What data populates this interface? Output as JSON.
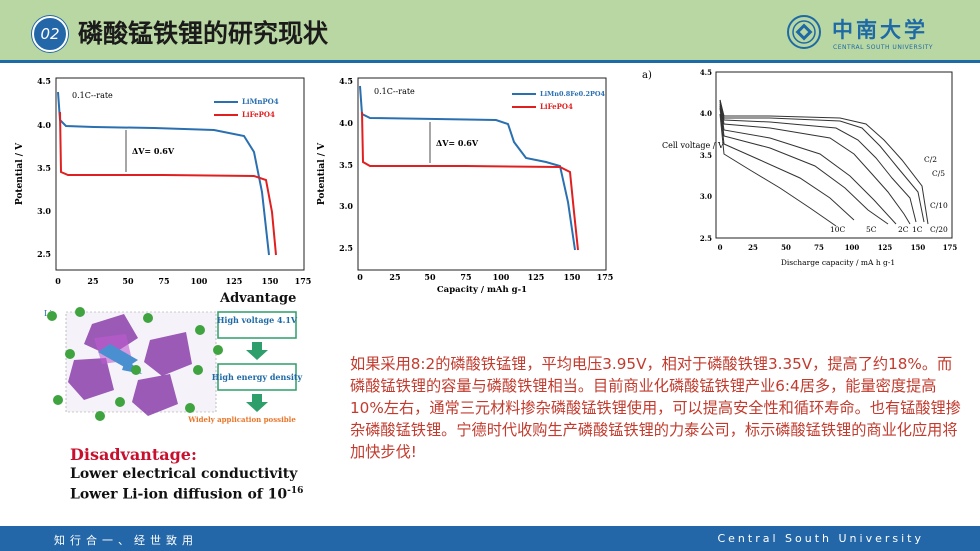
{
  "header": {
    "section_number": "02",
    "title": "磷酸锰铁锂的研究现状"
  },
  "logo": {
    "cn": "中南大学",
    "en": "CENTRAL SOUTH UNIVERSITY"
  },
  "footer": {
    "motto": "知行合一、经世致用",
    "en": "Central South University"
  },
  "figure1": {
    "rate_label": "0.1C--rate",
    "series": [
      "LiMnPO4",
      "LiFePO4"
    ],
    "dv_label": "ΔV= 0.6V",
    "ylabel": "Potential / V",
    "yticks": [
      "4.5",
      "4.0",
      "3.5",
      "3.0",
      "2.5"
    ],
    "xticks": [
      "0",
      "25",
      "50",
      "75",
      "100",
      "125",
      "150",
      "175"
    ]
  },
  "figure2": {
    "rate_label": "0.1C--rate",
    "series": [
      "LiMn0.8Fe0.2PO4",
      "LiFePO4"
    ],
    "dv_label": "ΔV= 0.6V",
    "ylabel": "Potential / V",
    "xlabel": "Capacity / mAh g-1",
    "yticks": [
      "4.5",
      "4.0",
      "3.5",
      "3.0",
      "2.5"
    ],
    "xticks": [
      "0",
      "25",
      "50",
      "75",
      "100",
      "125",
      "150",
      "175"
    ]
  },
  "figure3": {
    "panel_label": "a)",
    "ylabel": "Cell voltage / V",
    "xlabel": "Discharge capacity / mA h g-1",
    "yticks": [
      "4.5",
      "4.0",
      "3.5",
      "3.0",
      "2.5"
    ],
    "xticks": [
      "0",
      "25",
      "50",
      "75",
      "100",
      "125",
      "150",
      "175"
    ],
    "rate_labels_right": [
      "C/2",
      "C/5",
      "C/10",
      "C/20"
    ],
    "rate_labels_bottom": [
      "10C",
      "5C",
      "2C",
      "1C"
    ]
  },
  "advantage": {
    "title": "Advantage",
    "li_label": "Li",
    "box1": "High voltage 4.1V",
    "box2": "High energy density",
    "note": "Widely application possible"
  },
  "disadvantage": {
    "title": "Disadvantage:",
    "item1": "Lower electrical conductivity",
    "item2_prefix": "Lower Li-ion diffusion of 10",
    "item2_sup": "-16"
  },
  "body_text": "如果采用8:2的磷酸铁锰锂，平均电压3.95V，相对于磷酸铁锂3.35V，提高了约18%。而磷酸锰铁锂的容量与磷酸铁锂相当。目前商业化磷酸锰铁锂产业6:4居多，能量密度提高10%左右，通常三元材料掺杂磷酸锰铁锂使用，可以提高安全性和循环寿命。也有锰酸锂掺杂磷酸锰铁锂。宁德时代收购生产磷酸锰铁锂的力泰公司，标示磷酸锰铁锂的商业化应用将加快步伐!",
  "colors": {
    "header_bg": "#b9d7a2",
    "accent": "#2467a8",
    "body_text": "#c23b2e",
    "series_blue": "#2a6fb0",
    "series_red": "#e02020"
  }
}
